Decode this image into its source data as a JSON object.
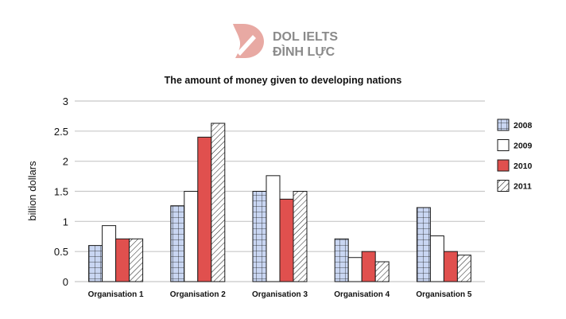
{
  "logo": {
    "line1": "DOL IELTS",
    "line2": "ĐÌNH LỰC",
    "color": "#e8a9a3"
  },
  "chart_data": {
    "type": "bar",
    "title": "The amount of money  given to developing nations",
    "xlabel": "",
    "ylabel": "billion dollars",
    "ylim": [
      0,
      3
    ],
    "yticks": [
      0,
      0.5,
      1,
      1.5,
      2,
      2.5,
      3
    ],
    "ytick_labels": [
      "0",
      "0.5",
      "1",
      "1.5",
      "2",
      "2.5",
      "3"
    ],
    "grid": true,
    "legend_position": "right",
    "categories": [
      "Organisation 1",
      "Organisation 2",
      "Organisation 3",
      "Organisation 4",
      "Organisation 5"
    ],
    "series": [
      {
        "name": "2008",
        "pattern": "grid",
        "color": "#c9d6f2",
        "values": [
          0.6,
          1.26,
          1.5,
          0.71,
          1.23
        ]
      },
      {
        "name": "2009",
        "pattern": "plain",
        "color": "#ffffff",
        "values": [
          0.93,
          1.5,
          1.76,
          0.4,
          0.76
        ]
      },
      {
        "name": "2010",
        "pattern": "solid",
        "color": "#e0504e",
        "values": [
          0.71,
          2.4,
          1.37,
          0.5,
          0.5
        ]
      },
      {
        "name": "2011",
        "pattern": "diagonal",
        "color": "#ffffff",
        "values": [
          0.71,
          2.63,
          1.5,
          0.33,
          0.44
        ]
      }
    ]
  }
}
